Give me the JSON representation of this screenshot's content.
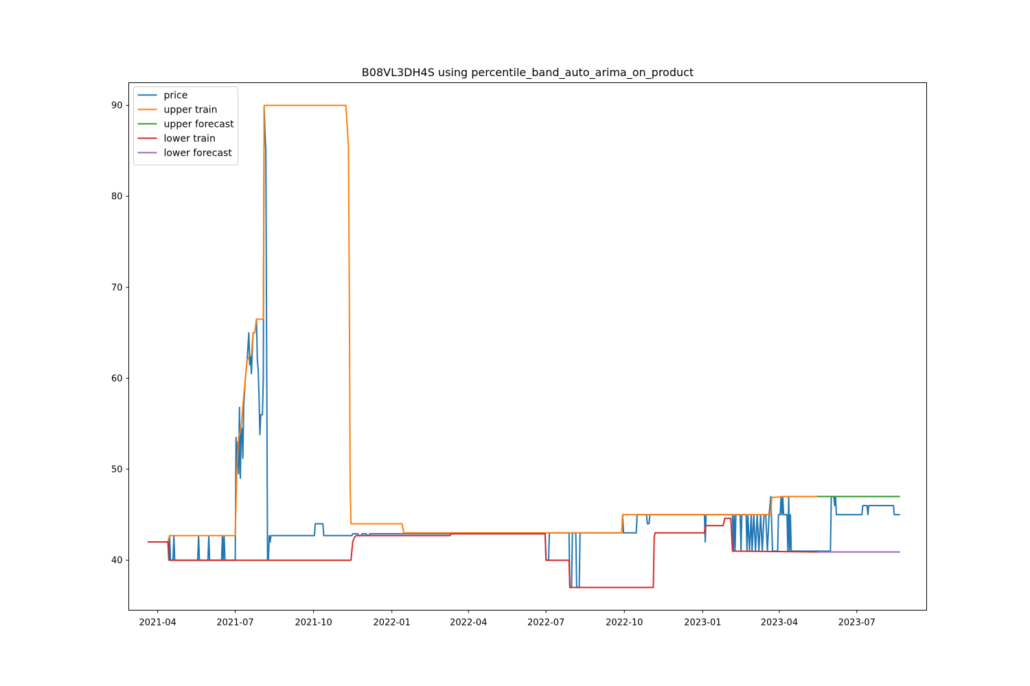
{
  "chart_data": {
    "type": "line",
    "title": "B08VL3DH4S using percentile_band_auto_arima_on_product",
    "xlabel": "",
    "ylabel": "",
    "x_axis": "date",
    "xlim": [
      "2021-02-26",
      "2023-09-21"
    ],
    "ylim": [
      34.5,
      92.5
    ],
    "x_ticks": [
      "2021-04-01",
      "2021-07-01",
      "2021-10-01",
      "2022-01-01",
      "2022-04-01",
      "2022-07-01",
      "2022-10-01",
      "2023-01-01",
      "2023-04-01",
      "2023-07-01"
    ],
    "x_tick_labels": [
      "2021-04",
      "2021-07",
      "2021-10",
      "2022-01",
      "2022-04",
      "2022-07",
      "2022-10",
      "2023-01",
      "2023-04",
      "2023-07"
    ],
    "y_ticks": [
      40,
      50,
      60,
      70,
      80,
      90
    ],
    "grid": false,
    "legend_position": "upper-left",
    "series": [
      {
        "name": "price",
        "color": "#1f77b4",
        "points": [
          [
            "2021-03-21",
            42.0
          ],
          [
            "2021-04-13",
            42.0
          ],
          [
            "2021-04-14",
            40.0
          ],
          [
            "2021-04-15",
            42.7
          ],
          [
            "2021-04-16",
            40.0
          ],
          [
            "2021-04-19",
            40.0
          ],
          [
            "2021-04-20",
            42.7
          ],
          [
            "2021-04-21",
            40.0
          ],
          [
            "2021-05-18",
            40.0
          ],
          [
            "2021-05-19",
            42.7
          ],
          [
            "2021-05-20",
            40.0
          ],
          [
            "2021-05-30",
            40.0
          ],
          [
            "2021-05-31",
            42.7
          ],
          [
            "2021-06-01",
            40.0
          ],
          [
            "2021-06-15",
            40.0
          ],
          [
            "2021-06-16",
            42.7
          ],
          [
            "2021-06-17",
            40.0
          ],
          [
            "2021-06-18",
            42.7
          ],
          [
            "2021-06-19",
            40.0
          ],
          [
            "2021-07-01",
            40.0
          ],
          [
            "2021-07-02",
            53.5
          ],
          [
            "2021-07-03",
            50.0
          ],
          [
            "2021-07-04",
            53.0
          ],
          [
            "2021-07-05",
            49.5
          ],
          [
            "2021-07-06",
            56.8
          ],
          [
            "2021-07-07",
            49.0
          ],
          [
            "2021-07-08",
            54.0
          ],
          [
            "2021-07-09",
            54.5
          ],
          [
            "2021-07-10",
            51.2
          ],
          [
            "2021-07-11",
            57.0
          ],
          [
            "2021-07-13",
            60.0
          ],
          [
            "2021-07-15",
            62.0
          ],
          [
            "2021-07-17",
            65.0
          ],
          [
            "2021-07-18",
            61.5
          ],
          [
            "2021-07-19",
            62.5
          ],
          [
            "2021-07-20",
            60.5
          ],
          [
            "2021-07-22",
            65.0
          ],
          [
            "2021-07-24",
            65.0
          ],
          [
            "2021-07-26",
            66.5
          ],
          [
            "2021-07-27",
            62.0
          ],
          [
            "2021-07-28",
            61.0
          ],
          [
            "2021-07-29",
            58.0
          ],
          [
            "2021-07-30",
            53.8
          ],
          [
            "2021-07-31",
            56.0
          ],
          [
            "2021-08-02",
            56.0
          ],
          [
            "2021-08-03",
            60.0
          ],
          [
            "2021-08-04",
            89.8
          ],
          [
            "2021-08-05",
            87.0
          ],
          [
            "2021-08-06",
            85.0
          ],
          [
            "2021-08-07",
            62.0
          ],
          [
            "2021-08-08",
            40.0
          ],
          [
            "2021-08-09",
            40.0
          ],
          [
            "2021-08-10",
            42.7
          ],
          [
            "2021-08-11",
            42.0
          ],
          [
            "2021-08-12",
            42.7
          ],
          [
            "2021-10-02",
            42.7
          ],
          [
            "2021-10-03",
            44.0
          ],
          [
            "2021-10-12",
            44.0
          ],
          [
            "2021-10-13",
            42.7
          ],
          [
            "2021-11-15",
            42.7
          ],
          [
            "2021-11-16",
            42.9
          ],
          [
            "2021-11-22",
            42.9
          ],
          [
            "2021-11-23",
            42.7
          ],
          [
            "2021-11-26",
            42.7
          ],
          [
            "2021-11-27",
            42.9
          ],
          [
            "2021-12-02",
            42.9
          ],
          [
            "2021-12-03",
            42.7
          ],
          [
            "2021-12-05",
            42.7
          ],
          [
            "2021-12-06",
            42.9
          ],
          [
            "2022-06-30",
            42.9
          ],
          [
            "2022-07-01",
            40.0
          ],
          [
            "2022-07-04",
            40.0
          ],
          [
            "2022-07-05",
            43.0
          ],
          [
            "2022-07-28",
            43.0
          ],
          [
            "2022-07-29",
            37.0
          ],
          [
            "2022-07-31",
            37.0
          ],
          [
            "2022-08-01",
            43.0
          ],
          [
            "2022-08-05",
            43.0
          ],
          [
            "2022-08-06",
            37.0
          ],
          [
            "2022-08-09",
            37.0
          ],
          [
            "2022-08-10",
            43.0
          ],
          [
            "2022-09-28",
            43.0
          ],
          [
            "2022-09-29",
            45.0
          ],
          [
            "2022-09-30",
            43.0
          ],
          [
            "2022-10-15",
            43.0
          ],
          [
            "2022-10-16",
            45.0
          ],
          [
            "2022-10-27",
            45.0
          ],
          [
            "2022-10-28",
            44.0
          ],
          [
            "2022-10-30",
            44.0
          ],
          [
            "2022-10-31",
            45.0
          ],
          [
            "2023-01-03",
            45.0
          ],
          [
            "2023-01-04",
            42.0
          ],
          [
            "2023-01-05",
            45.0
          ],
          [
            "2023-02-05",
            45.0
          ],
          [
            "2023-02-06",
            41.0
          ],
          [
            "2023-02-07",
            45.0
          ],
          [
            "2023-02-08",
            41.0
          ],
          [
            "2023-02-09",
            45.0
          ],
          [
            "2023-02-14",
            45.0
          ],
          [
            "2023-02-15",
            41.0
          ],
          [
            "2023-02-16",
            45.0
          ],
          [
            "2023-02-21",
            45.0
          ],
          [
            "2023-02-22",
            41.0
          ],
          [
            "2023-02-23",
            45.0
          ],
          [
            "2023-02-25",
            41.0
          ],
          [
            "2023-02-27",
            45.0
          ],
          [
            "2023-02-28",
            41.0
          ],
          [
            "2023-03-02",
            45.0
          ],
          [
            "2023-03-04",
            41.0
          ],
          [
            "2023-03-06",
            45.0
          ],
          [
            "2023-03-08",
            41.0
          ],
          [
            "2023-03-10",
            45.0
          ],
          [
            "2023-03-12",
            41.0
          ],
          [
            "2023-03-14",
            45.0
          ],
          [
            "2023-03-16",
            45.0
          ],
          [
            "2023-03-18",
            41.0
          ],
          [
            "2023-03-20",
            45.0
          ],
          [
            "2023-03-22",
            47.0
          ],
          [
            "2023-03-24",
            41.0
          ],
          [
            "2023-03-30",
            41.0
          ],
          [
            "2023-03-31",
            45.0
          ],
          [
            "2023-04-02",
            45.0
          ],
          [
            "2023-04-03",
            47.0
          ],
          [
            "2023-04-04",
            45.0
          ],
          [
            "2023-04-05",
            47.0
          ],
          [
            "2023-04-06",
            45.0
          ],
          [
            "2023-04-10",
            45.0
          ],
          [
            "2023-04-11",
            41.0
          ],
          [
            "2023-04-12",
            47.0
          ],
          [
            "2023-04-13",
            41.0
          ],
          [
            "2023-04-14",
            45.0
          ],
          [
            "2023-04-15",
            41.0
          ],
          [
            "2023-05-31",
            41.0
          ],
          [
            "2023-06-01",
            47.0
          ],
          [
            "2023-06-04",
            47.0
          ],
          [
            "2023-06-05",
            46.0
          ],
          [
            "2023-06-06",
            47.0
          ],
          [
            "2023-06-07",
            45.0
          ],
          [
            "2023-07-07",
            45.0
          ],
          [
            "2023-07-08",
            46.0
          ],
          [
            "2023-07-13",
            46.0
          ],
          [
            "2023-07-14",
            45.0
          ],
          [
            "2023-07-15",
            46.0
          ],
          [
            "2023-08-13",
            46.0
          ],
          [
            "2023-08-14",
            45.0
          ],
          [
            "2023-08-20",
            45.0
          ]
        ]
      },
      {
        "name": "upper train",
        "color": "#ff7f0e",
        "points": [
          [
            "2021-03-21",
            42.0
          ],
          [
            "2021-04-13",
            42.0
          ],
          [
            "2021-04-15",
            42.7
          ],
          [
            "2021-07-01",
            42.7
          ],
          [
            "2021-07-03",
            50.0
          ],
          [
            "2021-07-05",
            53.5
          ],
          [
            "2021-07-08",
            54.5
          ],
          [
            "2021-07-10",
            57.0
          ],
          [
            "2021-07-13",
            60.0
          ],
          [
            "2021-07-15",
            62.0
          ],
          [
            "2021-07-18",
            62.5
          ],
          [
            "2021-07-20",
            62.5
          ],
          [
            "2021-07-22",
            65.0
          ],
          [
            "2021-07-24",
            65.0
          ],
          [
            "2021-07-26",
            66.5
          ],
          [
            "2021-08-03",
            66.5
          ],
          [
            "2021-08-04",
            90.0
          ],
          [
            "2021-11-08",
            90.0
          ],
          [
            "2021-11-10",
            87.0
          ],
          [
            "2021-11-11",
            85.5
          ],
          [
            "2021-11-12",
            70.0
          ],
          [
            "2021-11-13",
            48.0
          ],
          [
            "2021-11-14",
            44.0
          ],
          [
            "2022-01-13",
            44.0
          ],
          [
            "2022-01-15",
            43.0
          ],
          [
            "2022-03-10",
            43.0
          ],
          [
            "2022-03-12",
            43.0
          ],
          [
            "2022-09-28",
            43.0
          ],
          [
            "2022-09-29",
            45.0
          ],
          [
            "2023-03-22",
            45.0
          ],
          [
            "2023-03-23",
            46.9
          ],
          [
            "2023-04-08",
            47.0
          ],
          [
            "2023-05-16",
            47.0
          ]
        ]
      },
      {
        "name": "upper forecast",
        "color": "#2ca02c",
        "points": [
          [
            "2023-05-16",
            47.0
          ],
          [
            "2023-08-20",
            47.0
          ]
        ]
      },
      {
        "name": "lower train",
        "color": "#d62728",
        "points": [
          [
            "2021-03-21",
            42.0
          ],
          [
            "2021-04-13",
            42.0
          ],
          [
            "2021-04-15",
            40.0
          ],
          [
            "2021-11-14",
            40.0
          ],
          [
            "2021-11-16",
            42.0
          ],
          [
            "2021-11-18",
            42.5
          ],
          [
            "2021-11-20",
            42.7
          ],
          [
            "2022-03-10",
            42.7
          ],
          [
            "2022-03-12",
            42.9
          ],
          [
            "2022-06-30",
            42.9
          ],
          [
            "2022-07-01",
            40.0
          ],
          [
            "2022-07-28",
            40.0
          ],
          [
            "2022-07-29",
            37.0
          ],
          [
            "2022-11-04",
            37.0
          ],
          [
            "2022-11-05",
            42.5
          ],
          [
            "2022-11-06",
            43.0
          ],
          [
            "2023-01-03",
            43.0
          ],
          [
            "2023-01-04",
            43.8
          ],
          [
            "2023-01-25",
            43.8
          ],
          [
            "2023-01-27",
            44.6
          ],
          [
            "2023-02-03",
            44.6
          ],
          [
            "2023-02-05",
            41.0
          ],
          [
            "2023-05-16",
            40.9
          ]
        ]
      },
      {
        "name": "lower forecast",
        "color": "#9467bd",
        "points": [
          [
            "2023-05-16",
            40.9
          ],
          [
            "2023-08-20",
            40.9
          ]
        ]
      }
    ]
  }
}
